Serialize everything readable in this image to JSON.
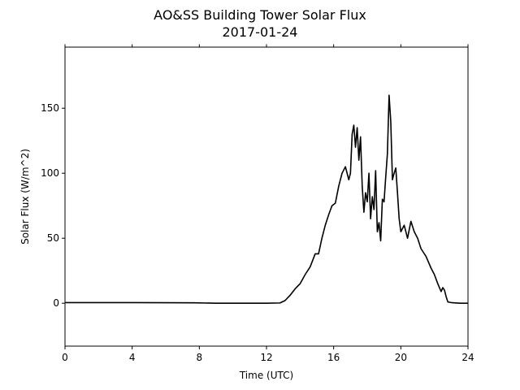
{
  "chart_data": {
    "type": "line",
    "title": "AO&SS Building Tower Solar Flux",
    "subtitle": "2017-01-24",
    "xlabel": "Time (UTC)",
    "ylabel": "Solar Flux (W/m^2)",
    "xlim": [
      0,
      24
    ],
    "ylim": [
      -33,
      197
    ],
    "x_ticks": [
      0,
      4,
      8,
      12,
      16,
      20,
      24
    ],
    "x_tick_labels": [
      "0",
      "4",
      "8",
      "12",
      "16",
      "20",
      "24"
    ],
    "y_ticks": [
      0,
      50,
      100,
      150
    ],
    "y_tick_labels": [
      "0",
      "50",
      "100",
      "150"
    ],
    "grid": false,
    "legend": "none",
    "line_color": "#000000",
    "series": [
      {
        "x": [
          0,
          2,
          4,
          6,
          7.7,
          9,
          10,
          11,
          12,
          12.8,
          13.1,
          13.4,
          13.7,
          14.0,
          14.3,
          14.6,
          14.9,
          15.1,
          15.3,
          15.5,
          15.7,
          15.9,
          16.1,
          16.3,
          16.5,
          16.7,
          16.9,
          17.0,
          17.1,
          17.2,
          17.3,
          17.4,
          17.5,
          17.6,
          17.7,
          17.8,
          17.9,
          18.0,
          18.1,
          18.2,
          18.3,
          18.4,
          18.5,
          18.6,
          18.7,
          18.8,
          18.9,
          19.0,
          19.1,
          19.2,
          19.3,
          19.35,
          19.4,
          19.5,
          19.6,
          19.7,
          19.8,
          19.9,
          20.0,
          20.2,
          20.4,
          20.6,
          20.8,
          21.0,
          21.2,
          21.5,
          21.8,
          22.0,
          22.2,
          22.4,
          22.5,
          22.6,
          22.7,
          22.8,
          23.0,
          23.5,
          24.0
        ],
        "y": [
          0.5,
          0.5,
          0.5,
          0.4,
          0.3,
          0,
          0,
          0,
          0,
          0.2,
          2,
          6,
          11,
          15,
          22,
          28,
          38,
          38,
          50,
          60,
          68,
          75,
          77,
          90,
          100,
          105,
          95,
          100,
          130,
          137,
          120,
          135,
          110,
          128,
          90,
          70,
          85,
          78,
          100,
          65,
          82,
          72,
          102,
          55,
          62,
          48,
          80,
          78,
          97,
          115,
          160,
          150,
          140,
          95,
          100,
          104,
          85,
          65,
          55,
          60,
          50,
          63,
          55,
          50,
          42,
          36,
          27,
          22,
          15,
          9,
          12,
          10,
          5,
          1,
          0.5,
          0,
          0
        ]
      }
    ]
  }
}
